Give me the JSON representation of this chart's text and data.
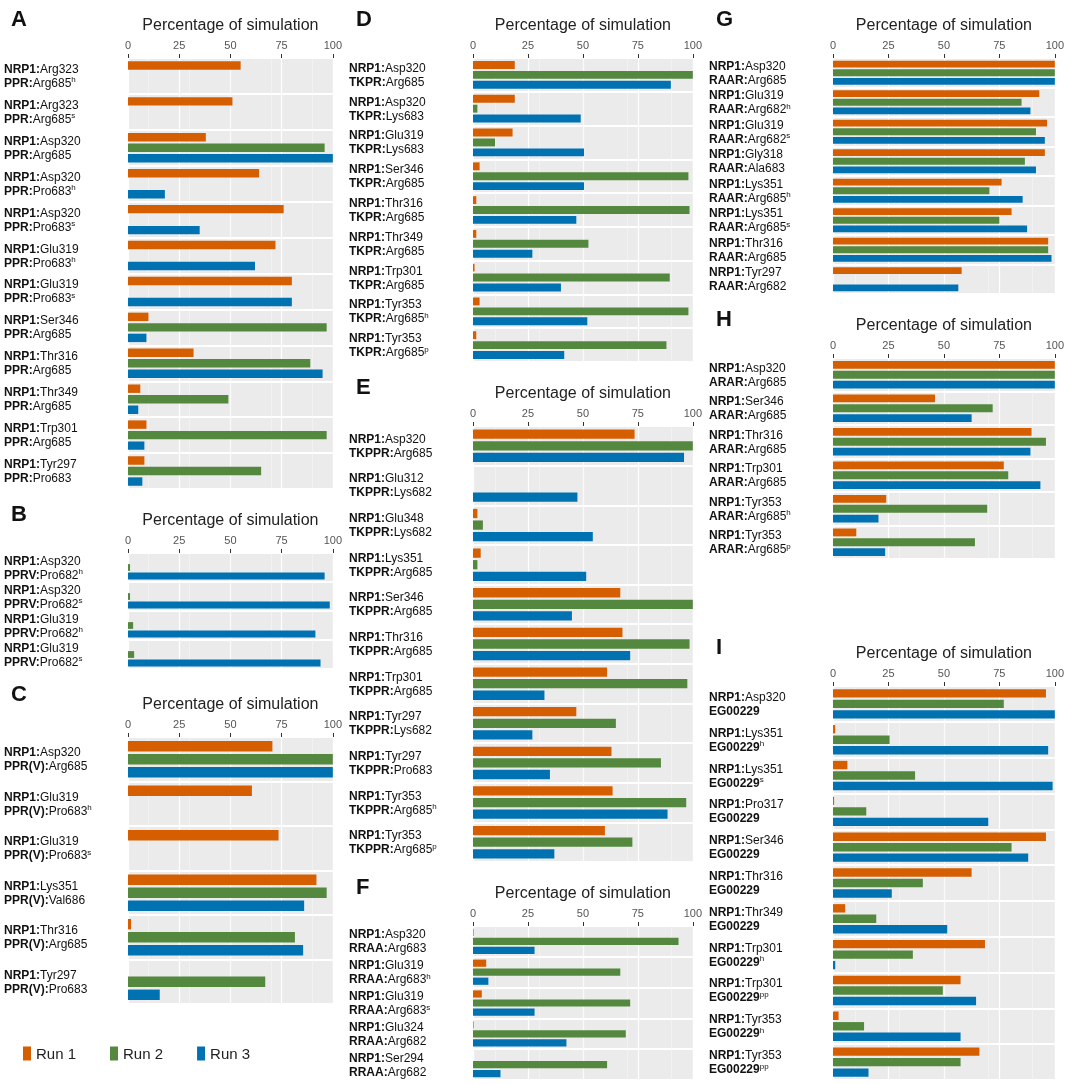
{
  "chart_data": [
    {
      "type": "bar",
      "orientation": "horizontal",
      "title": "A",
      "xlabel": "Percentage of simulation",
      "xlim": [
        0,
        100
      ],
      "xticks": [
        0,
        25,
        50,
        75,
        100
      ],
      "grid": true,
      "categories": [
        "NRP1:Arg323\nPPR:Arg685$^{h}$",
        "NRP1:Arg323\nPPR:Arg685$^{s}$",
        "NRP1:Asp320\nPPR:Arg685",
        "NRP1:Asp320\nPPR:Pro683$^{h}$",
        "NRP1:Asp320\nPPR:Pro683$^{s}$",
        "NRP1:Glu319\nPPR:Pro683$^{h}$",
        "NRP1:Glu319\nPPR:Pro683$^{s}$",
        "NRP1:Ser346\nPPR:Arg685",
        "NRP1:Thr316\nPPR:Arg685",
        "NRP1:Thr349\nPPR:Arg685",
        "NRP1:Trp301\nPPR:Arg685",
        "NRP1:Tyr297\nPPR:Pro683"
      ],
      "series": [
        {
          "color": "#d55e00",
          "values": [
            55,
            51,
            38,
            64,
            76,
            72,
            80,
            10,
            32,
            6,
            9,
            8
          ]
        },
        {
          "color": "#55883f",
          "values": [
            null,
            null,
            96,
            null,
            null,
            null,
            null,
            97,
            89,
            49,
            97,
            65
          ]
        },
        {
          "color": "#0072b2",
          "values": [
            null,
            null,
            100,
            18,
            35,
            62,
            80,
            9,
            95,
            5,
            8,
            7
          ]
        }
      ]
    },
    {
      "type": "bar",
      "orientation": "horizontal",
      "title": "B",
      "xlabel": "Percentage of simulation",
      "xlim": [
        0,
        100
      ],
      "xticks": [
        0,
        25,
        50,
        75,
        100
      ],
      "grid": true,
      "categories": [
        "NRP1:Asp320\nPPRV:Pro682$^{h}$",
        "NRP1:Asp320\nPPRV:Pro682$^{s}$",
        "NRP1:Glu319\nPPRV:Pro682$^{h}$",
        "NRP1:Glu319\nPPRV:Pro682$^{s}$"
      ],
      "series": [
        {
          "color": "#d55e00",
          "values": [
            null,
            null,
            null,
            null
          ]
        },
        {
          "color": "#55883f",
          "values": [
            1,
            1,
            2.5,
            3
          ]
        },
        {
          "color": "#0072b2",
          "values": [
            96,
            98.5,
            91.5,
            94
          ]
        }
      ]
    },
    {
      "type": "bar",
      "orientation": "horizontal",
      "title": "C",
      "xlabel": "Percentage of simulation",
      "xlim": [
        0,
        100
      ],
      "xticks": [
        0,
        25,
        50,
        75,
        100
      ],
      "grid": true,
      "legend": "bottom",
      "categories": [
        "NRP1:Asp320\nPPR(V):Arg685",
        "NRP1:Glu319\nPPR(V):Pro683$^{h}$",
        "NRP1:Glu319\nPPR(V):Pro683$^{s}$",
        "NRP1:Lys351\nPPR(V):Val686",
        "NRP1:Thr316\nPPR(V):Arg685",
        "NRP1:Tyr297\nPPR(V):Pro683"
      ],
      "series": [
        {
          "name": "Run 1",
          "color": "#d55e00",
          "values": [
            70.5,
            60.5,
            73.5,
            92,
            1.5,
            null
          ]
        },
        {
          "name": "Run 2",
          "color": "#55883f",
          "values": [
            100,
            null,
            null,
            97,
            81.5,
            67
          ]
        },
        {
          "name": "Run 3",
          "color": "#0072b2",
          "values": [
            100,
            null,
            null,
            86,
            85.5,
            15.5
          ]
        }
      ]
    },
    {
      "type": "bar",
      "orientation": "horizontal",
      "title": "D",
      "xlabel": "Percentage of simulation",
      "xlim": [
        0,
        100
      ],
      "xticks": [
        0,
        25,
        50,
        75,
        100
      ],
      "grid": true,
      "categories": [
        "NRP1:Asp320\nTKPR:Arg685",
        "NRP1:Asp320\nTKPR:Lys683",
        "NRP1:Glu319\nTKPR:Lys683",
        "NRP1:Ser346\nTKPR:Arg685",
        "NRP1:Thr316\nTKPR:Arg685",
        "NRP1:Thr349\nTKPR:Arg685",
        "NRP1:Trp301\nTKPR:Arg685",
        "NRP1:Tyr353\nTKPR:Arg685$^{h}$",
        "NRP1:Tyr353\nTKPR:Arg685$^{p}$"
      ],
      "series": [
        {
          "color": "#d55e00",
          "values": [
            19,
            19,
            18,
            3,
            1.5,
            1.5,
            0.7,
            3,
            1.5
          ]
        },
        {
          "color": "#55883f",
          "values": [
            100,
            2,
            10,
            98,
            98.5,
            52.5,
            89.5,
            98,
            88
          ]
        },
        {
          "color": "#0072b2",
          "values": [
            90,
            49,
            50.5,
            50.5,
            47,
            27,
            40,
            52,
            41.5
          ]
        }
      ]
    },
    {
      "type": "bar",
      "orientation": "horizontal",
      "title": "E",
      "xlabel": "Percentage of simulation",
      "xlim": [
        0,
        100
      ],
      "xticks": [
        0,
        25,
        50,
        75,
        100
      ],
      "grid": true,
      "categories": [
        "NRP1:Asp320\nTKPPR:Arg685",
        "NRP1:Glu312\nTKPPR:Lys682",
        "NRP1:Glu348\nTKPPR:Lys682",
        "NRP1:Lys351\nTKPPR:Arg685",
        "NRP1:Ser346\nTKPPR:Arg685",
        "NRP1:Thr316\nTKPPR:Arg685",
        "NRP1:Trp301\nTKPPR:Arg685",
        "NRP1:Tyr297\nTKPPR:Lys682",
        "NRP1:Tyr297\nTKPPR:Pro683",
        "NRP1:Tyr353\nTKPPR:Arg685$^{h}$",
        "NRP1:Tyr353\nTKPPR:Arg685$^{p}$"
      ],
      "series": [
        {
          "color": "#d55e00",
          "values": [
            73.5,
            null,
            2,
            3.5,
            67,
            68,
            61,
            47,
            63,
            63.5,
            60
          ]
        },
        {
          "color": "#55883f",
          "values": [
            100,
            null,
            4.5,
            2,
            100,
            98.5,
            97.5,
            65,
            85.5,
            97,
            72.5
          ]
        },
        {
          "color": "#0072b2",
          "values": [
            96,
            47.5,
            54.5,
            51.5,
            45,
            71.5,
            32.5,
            27,
            35,
            88.5,
            37
          ]
        }
      ]
    },
    {
      "type": "bar",
      "orientation": "horizontal",
      "title": "F",
      "xlabel": "Percentage of simulation",
      "xlim": [
        0,
        100
      ],
      "xticks": [
        0,
        25,
        50,
        75,
        100
      ],
      "grid": true,
      "categories": [
        "NRP1:Asp320\nRRAA:Arg683",
        "NRP1:Glu319\nRRAA:Arg683$^{h}$",
        "NRP1:Glu319\nRRAA:Arg683$^{s}$",
        "NRP1:Glu324\nRRAA:Arg682",
        "NRP1:Ser294\nRRAA:Arg682"
      ],
      "series": [
        {
          "color": "#d55e00",
          "values": [
            0.3,
            6,
            4,
            0.3,
            null
          ]
        },
        {
          "color": "#55883f",
          "values": [
            93.5,
            67,
            71.5,
            69.5,
            61
          ]
        },
        {
          "color": "#0072b2",
          "values": [
            28,
            7,
            28,
            42.5,
            12.5
          ]
        }
      ]
    },
    {
      "type": "bar",
      "orientation": "horizontal",
      "title": "G",
      "xlabel": "Percentage of simulation",
      "xlim": [
        0,
        100
      ],
      "xticks": [
        0,
        25,
        50,
        75,
        100
      ],
      "grid": true,
      "categories": [
        "NRP1:Asp320\nRAAR:Arg685",
        "NRP1:Glu319\nRAAR:Arg682$^{h}$",
        "NRP1:Glu319\nRAAR:Arg682$^{s}$",
        "NRP1:Gly318\nRAAR:Ala683",
        "NRP1:Lys351\nRAAR:Arg685$^{h}$",
        "NRP1:Lys351\nRAAR:Arg685$^{s}$",
        "NRP1:Thr316\nRAAR:Arg685",
        "NRP1:Tyr297\nRAAR:Arg682"
      ],
      "series": [
        {
          "color": "#d55e00",
          "values": [
            100,
            93,
            96.5,
            95.5,
            76,
            80.5,
            97,
            58
          ]
        },
        {
          "color": "#55883f",
          "values": [
            100,
            85,
            91.5,
            86.5,
            70.5,
            75,
            97,
            null
          ]
        },
        {
          "color": "#0072b2",
          "values": [
            100,
            89,
            95.5,
            91.5,
            85.5,
            87.5,
            98.5,
            56.5
          ]
        }
      ]
    },
    {
      "type": "bar",
      "orientation": "horizontal",
      "title": "H",
      "xlabel": "Percentage of simulation",
      "xlim": [
        0,
        100
      ],
      "xticks": [
        0,
        25,
        50,
        75,
        100
      ],
      "grid": true,
      "categories": [
        "NRP1:Asp320\nARAR:Arg685",
        "NRP1:Ser346\nARAR:Arg685",
        "NRP1:Thr316\nARAR:Arg685",
        "NRP1:Trp301\nARAR:Arg685",
        "NRP1:Tyr353\nARAR:Arg685$^{h}$",
        "NRP1:Tyr353\nARAR:Arg685$^{p}$"
      ],
      "series": [
        {
          "color": "#d55e00",
          "values": [
            100,
            46,
            89.5,
            77,
            24,
            10.5
          ]
        },
        {
          "color": "#55883f",
          "values": [
            100,
            72,
            96,
            79,
            69.5,
            64
          ]
        },
        {
          "color": "#0072b2",
          "values": [
            100,
            62.5,
            89,
            93.5,
            20.5,
            23.5
          ]
        }
      ]
    },
    {
      "type": "bar",
      "orientation": "horizontal",
      "title": "I",
      "xlabel": "Percentage of simulation",
      "xlim": [
        0,
        100
      ],
      "xticks": [
        0,
        25,
        50,
        75,
        100
      ],
      "grid": true,
      "categories": [
        "NRP1:Asp320\nEG00229",
        "NRP1:Lys351\nEG00229$^{h}$",
        "NRP1:Lys351\nEG00229$^{s}$",
        "NRP1:Pro317\nEG00229",
        "NRP1:Ser346\nEG00229",
        "NRP1:Thr316\nEG00229",
        "NRP1:Thr349\nEG00229",
        "NRP1:Trp301\nEG00229$^{h}$",
        "NRP1:Trp301\nEG00229$^{pp}$",
        "NRP1:Tyr353\nEG00229$^{h}$",
        "NRP1:Tyr353\nEG00229$^{pp}$"
      ],
      "series": [
        {
          "color": "#d55e00",
          "values": [
            96,
            1,
            6.5,
            0.5,
            96,
            62.5,
            5.5,
            68.5,
            57.5,
            2.5,
            66
          ]
        },
        {
          "color": "#55883f",
          "values": [
            77,
            25.5,
            37,
            15,
            80.5,
            40.5,
            19.5,
            36,
            49.5,
            14,
            57.5
          ]
        },
        {
          "color": "#0072b2",
          "values": [
            100,
            97,
            99,
            70,
            88,
            26.5,
            51.5,
            1,
            64.5,
            57.5,
            16
          ]
        }
      ]
    }
  ]
}
